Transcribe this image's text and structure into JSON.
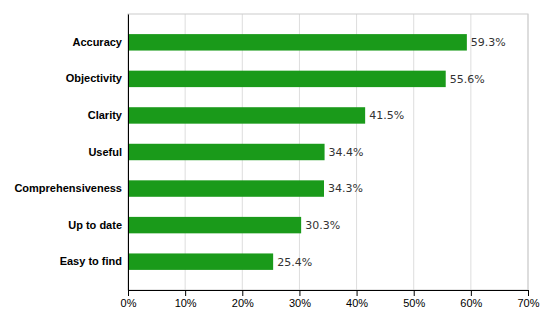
{
  "chart_data": {
    "type": "bar",
    "orientation": "horizontal",
    "categories": [
      "Easy to find",
      "Up to date",
      "Comprehensiveness",
      "Useful",
      "Clarity",
      "Objectivity",
      "Accuracy"
    ],
    "values": [
      25.4,
      30.3,
      34.3,
      34.4,
      41.5,
      55.6,
      59.3
    ],
    "value_labels": [
      "25.4%",
      "30.3%",
      "34.3%",
      "34.4%",
      "41.5%",
      "55.6%",
      "59.3%"
    ],
    "data_labels": true,
    "color": "#1a9a1a",
    "xlim": [
      0,
      70
    ],
    "xticks": [
      {
        "value": 0,
        "label": "0%"
      },
      {
        "value": 10,
        "label": "10%"
      },
      {
        "value": 20,
        "label": "20%"
      },
      {
        "value": 30,
        "label": "30%"
      },
      {
        "value": 40,
        "label": "40%"
      },
      {
        "value": 50,
        "label": "50%"
      },
      {
        "value": 60,
        "label": "60%"
      },
      {
        "value": 70,
        "label": "70%"
      }
    ],
    "grid": true
  }
}
